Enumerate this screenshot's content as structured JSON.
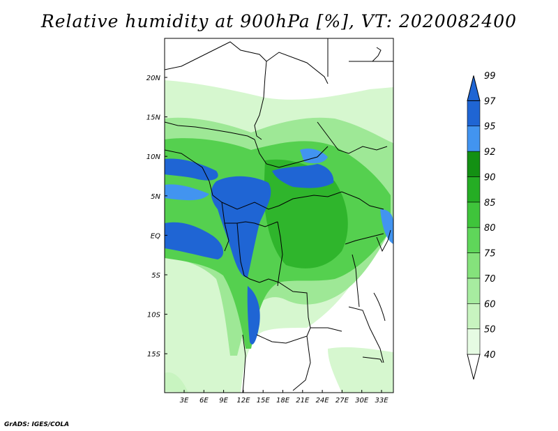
{
  "title": "Relative humidity at 900hPa [%], VT: 2020082400",
  "credit": "GrADS: IGES/COLA",
  "map": {
    "lon_ticks": [
      "3E",
      "6E",
      "9E",
      "12E",
      "15E",
      "18E",
      "21E",
      "24E",
      "27E",
      "30E",
      "33E"
    ],
    "lat_ticks": [
      "20N",
      "15N",
      "10N",
      "5N",
      "EQ",
      "5S",
      "10S",
      "15S"
    ]
  },
  "legend": {
    "labels": [
      "40",
      "50",
      "60",
      "70",
      "75",
      "80",
      "85",
      "90",
      "92",
      "95",
      "97",
      "99"
    ],
    "colors": [
      "#ffffff",
      "#e6fbe3",
      "#c8f4c0",
      "#a7eca0",
      "#85e27c",
      "#5fd65a",
      "#3fc43b",
      "#25ad24",
      "#139013",
      "#4294f0",
      "#1f65d4"
    ]
  }
}
